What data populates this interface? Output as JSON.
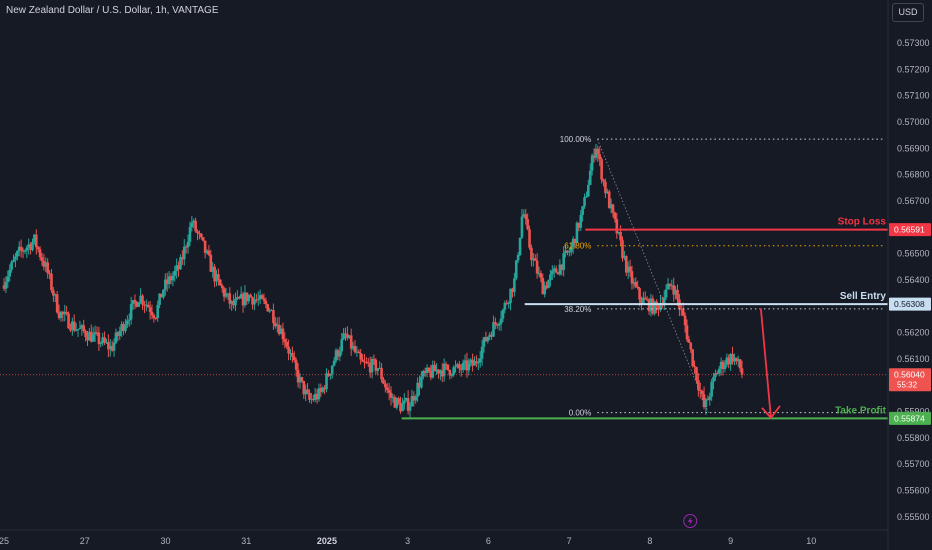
{
  "header": {
    "title": "New Zealand Dollar / U.S. Dollar, 1h, VANTAGE",
    "currency": "USD"
  },
  "colors": {
    "background": "#161a25",
    "bull": "#26a69a",
    "bear": "#ef5350",
    "stop_loss": "#f23645",
    "sell_entry": "#c8dff2",
    "take_profit": "#4caf50",
    "fib_main": "#d1d4dc",
    "fib_618": "#f0a500",
    "arrow": "#f23645",
    "lightning": "#9c27b0"
  },
  "icons": {
    "lightning": "lightning-icon"
  },
  "chart_data": {
    "type": "candlestick",
    "ylim": [
      0.5545,
      0.5738
    ],
    "y_ticks": [
      "0.57300",
      "0.57200",
      "0.57100",
      "0.57000",
      "0.56900",
      "0.56800",
      "0.56700",
      "0.56500",
      "0.56400",
      "0.56200",
      "0.56100",
      "0.55900",
      "0.55800",
      "0.55700",
      "0.55600",
      "0.55500"
    ],
    "x_ticks": [
      {
        "label": "25",
        "x": 0
      },
      {
        "label": "27",
        "x": 2
      },
      {
        "label": "30",
        "x": 4
      },
      {
        "label": "31",
        "x": 6
      },
      {
        "label": "2025",
        "x": 8,
        "bold": true
      },
      {
        "label": "3",
        "x": 10
      },
      {
        "label": "6",
        "x": 12
      },
      {
        "label": "7",
        "x": 14
      },
      {
        "label": "8",
        "x": 16
      },
      {
        "label": "9",
        "x": 18
      },
      {
        "label": "10",
        "x": 20
      }
    ],
    "x_range": [
      -0.1,
      21.9
    ],
    "price_path": [
      [
        0.0,
        0.5638
      ],
      [
        0.4,
        0.565
      ],
      [
        0.8,
        0.5655
      ],
      [
        1.1,
        0.5644
      ],
      [
        1.4,
        0.5628
      ],
      [
        1.8,
        0.5622
      ],
      [
        2.3,
        0.5618
      ],
      [
        2.7,
        0.5614
      ],
      [
        3.1,
        0.5626
      ],
      [
        3.4,
        0.5634
      ],
      [
        3.8,
        0.5627
      ],
      [
        4.0,
        0.5637
      ],
      [
        4.4,
        0.5645
      ],
      [
        4.7,
        0.5662
      ],
      [
        5.0,
        0.5652
      ],
      [
        5.3,
        0.564
      ],
      [
        5.7,
        0.563
      ],
      [
        6.1,
        0.5634
      ],
      [
        6.6,
        0.563
      ],
      [
        7.0,
        0.5618
      ],
      [
        7.3,
        0.5604
      ],
      [
        7.6,
        0.5594
      ],
      [
        7.9,
        0.5597
      ],
      [
        8.2,
        0.5609
      ],
      [
        8.5,
        0.5619
      ],
      [
        8.9,
        0.5608
      ],
      [
        9.3,
        0.5607
      ],
      [
        9.6,
        0.5596
      ],
      [
        9.85,
        0.5592
      ],
      [
        10.1,
        0.5593
      ],
      [
        10.4,
        0.5603
      ],
      [
        10.8,
        0.5606
      ],
      [
        11.3,
        0.5606
      ],
      [
        11.7,
        0.5608
      ],
      [
        12.0,
        0.5618
      ],
      [
        12.4,
        0.5628
      ],
      [
        12.7,
        0.564
      ],
      [
        12.9,
        0.5667
      ],
      [
        13.1,
        0.565
      ],
      [
        13.4,
        0.5637
      ],
      [
        13.8,
        0.5645
      ],
      [
        14.1,
        0.5652
      ],
      [
        14.4,
        0.5667
      ],
      [
        14.7,
        0.5692
      ],
      [
        14.9,
        0.5677
      ],
      [
        15.2,
        0.566
      ],
      [
        15.5,
        0.5643
      ],
      [
        15.8,
        0.5633
      ],
      [
        16.2,
        0.5629
      ],
      [
        16.6,
        0.5639
      ],
      [
        16.9,
        0.5624
      ],
      [
        17.1,
        0.561
      ],
      [
        17.4,
        0.5591
      ],
      [
        17.7,
        0.5605
      ],
      [
        17.9,
        0.5609
      ],
      [
        18.1,
        0.5611
      ],
      [
        18.3,
        0.5606
      ]
    ],
    "last_price": 0.5604,
    "fib_retracement": {
      "levels": [
        {
          "label": "100.00%",
          "price": 0.56935
        },
        {
          "label": "61.80%",
          "price": 0.5653
        },
        {
          "label": "38.20%",
          "price": 0.5629
        },
        {
          "label": "0.00%",
          "price": 0.55896
        }
      ],
      "x_start": 14.7,
      "x_end": 21.8
    },
    "levels": [
      {
        "name": "Stop Loss",
        "price": 0.56591,
        "price_label": "0.56591",
        "x_start": 14.4,
        "color_key": "stop_loss"
      },
      {
        "name": "Sell Entry",
        "price": 0.56308,
        "price_label": "0.56308",
        "x_start": 12.9,
        "color_key": "sell_entry"
      },
      {
        "name": "Take Profit",
        "price": 0.55874,
        "price_label": "0.55874",
        "x_start": 9.85,
        "color_key": "take_profit"
      }
    ],
    "last_price_tag": {
      "price_label": "0.56040",
      "countdown": "55:32"
    },
    "projection_arrow": {
      "from": [
        18.75,
        0.56292
      ],
      "to": [
        19.0,
        0.55876
      ]
    }
  }
}
